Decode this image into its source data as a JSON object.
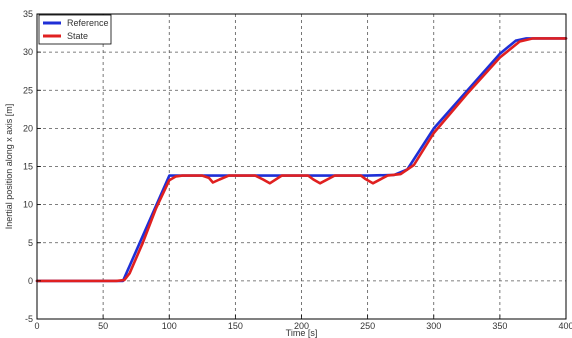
{
  "chart_data": {
    "type": "line",
    "title": "",
    "xlabel": "Time [s]",
    "ylabel": "Inertial position along x axis [m]",
    "xlim": [
      0,
      400
    ],
    "ylim": [
      -5,
      35
    ],
    "xticks": [
      0,
      50,
      100,
      150,
      200,
      250,
      300,
      350,
      400
    ],
    "yticks": [
      -5,
      0,
      5,
      10,
      15,
      20,
      25,
      30,
      35
    ],
    "grid": true,
    "grid_style": "dashed",
    "legend_position": "top-left",
    "series": [
      {
        "name": "Reference",
        "color": "#1f2fd6",
        "x": [
          0,
          65,
          100,
          135,
          150,
          175,
          200,
          250,
          270,
          280,
          300,
          350,
          362,
          370,
          400
        ],
        "y": [
          0,
          0,
          13.8,
          13.8,
          13.8,
          13.8,
          13.8,
          13.8,
          13.9,
          14.6,
          20.0,
          29.8,
          31.5,
          31.8,
          31.8
        ]
      },
      {
        "name": "State",
        "color": "#e02020",
        "x": [
          0,
          60,
          66,
          70,
          80,
          90,
          100,
          105,
          110,
          120,
          125,
          130,
          133,
          138,
          145,
          155,
          165,
          171,
          176,
          185,
          195,
          205,
          209,
          214,
          225,
          235,
          245,
          248,
          254,
          265,
          275,
          285,
          300,
          325,
          350,
          365,
          375,
          400
        ],
        "y": [
          0,
          0,
          0.1,
          1.0,
          5.0,
          9.5,
          13.2,
          13.7,
          13.8,
          13.8,
          13.8,
          13.5,
          12.9,
          13.3,
          13.8,
          13.8,
          13.8,
          13.3,
          12.8,
          13.8,
          13.8,
          13.8,
          13.3,
          12.8,
          13.8,
          13.8,
          13.8,
          13.4,
          12.8,
          13.8,
          14.0,
          15.2,
          19.4,
          24.5,
          29.3,
          31.4,
          31.8,
          31.8
        ]
      }
    ]
  }
}
